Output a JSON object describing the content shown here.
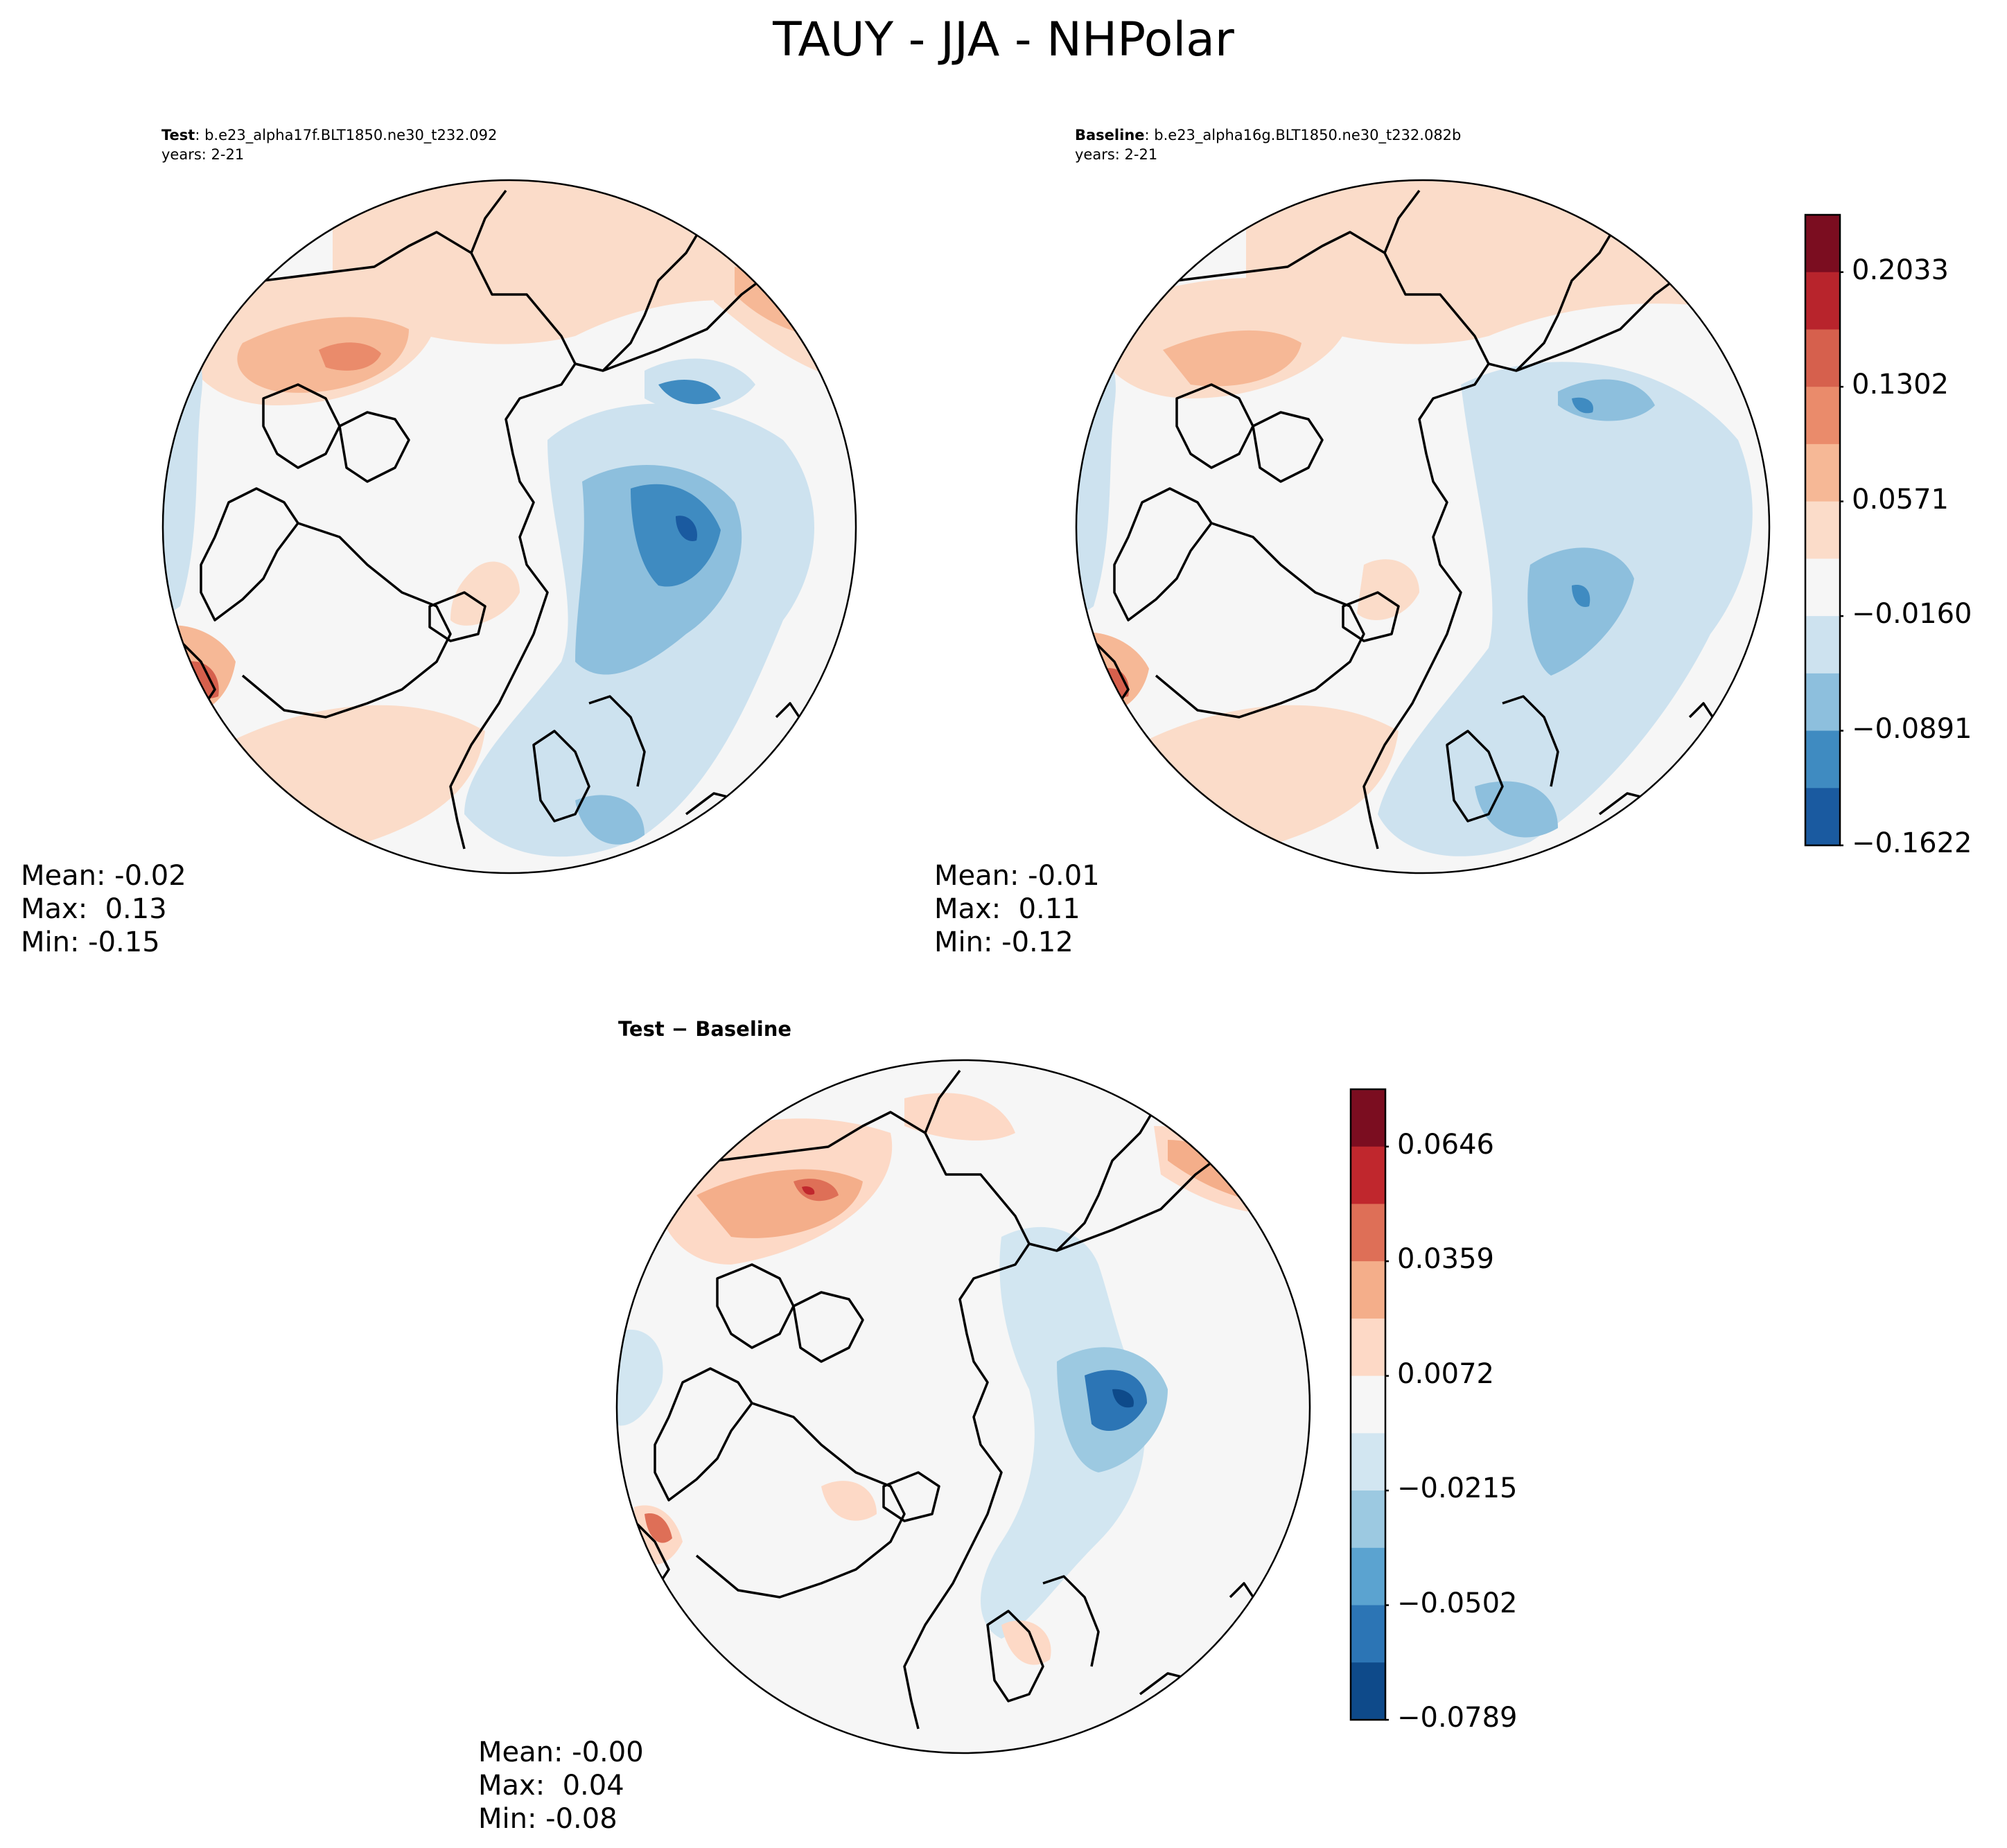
{
  "title": "TAUY - JJA - NHPolar",
  "panels": {
    "test": {
      "label": "Test",
      "case": ": b.e23_alpha17f.BLT1850.ne30_t232.092",
      "years": "years: 2-21",
      "stats": {
        "mean": "Mean: -0.02",
        "max": "Max:  0.13",
        "min": "Min: -0.15"
      }
    },
    "baseline": {
      "label": "Baseline",
      "case": ": b.e23_alpha16g.BLT1850.ne30_t232.082b",
      "years": "years: 2-21",
      "stats": {
        "mean": "Mean: -0.01",
        "max": "Max:  0.11",
        "min": "Min: -0.12"
      }
    },
    "diff": {
      "label_a": "Test",
      "label_sep": " − ",
      "label_b": "Baseline",
      "stats": {
        "mean": "Mean: -0.00",
        "max": "Max:  0.04",
        "min": "Min: -0.08"
      }
    }
  },
  "colorbars": {
    "main": {
      "tick_labels": [
        "0.2033",
        "0.1302",
        "0.0571",
        "−0.0160",
        "−0.0891",
        "−0.1622"
      ],
      "colors": [
        "#7b0d20",
        "#b8242c",
        "#d6604d",
        "#ea8b6b",
        "#f6b896",
        "#fbdcc9",
        "#f6f6f6",
        "#cde2ef",
        "#8dbfdd",
        "#3f8bc1",
        "#1a5aa0"
      ]
    },
    "diff": {
      "tick_labels": [
        "0.0646",
        "0.0359",
        "0.0072",
        "−0.0215",
        "−0.0502",
        "−0.0789"
      ],
      "colors": [
        "#7b0d20",
        "#c0272d",
        "#de6f57",
        "#f4ae8a",
        "#fdd9c6",
        "#f6f6f6",
        "#d2e6f1",
        "#9cc9e1",
        "#5ba3d0",
        "#2c75b5",
        "#0e4a8a"
      ]
    }
  }
}
